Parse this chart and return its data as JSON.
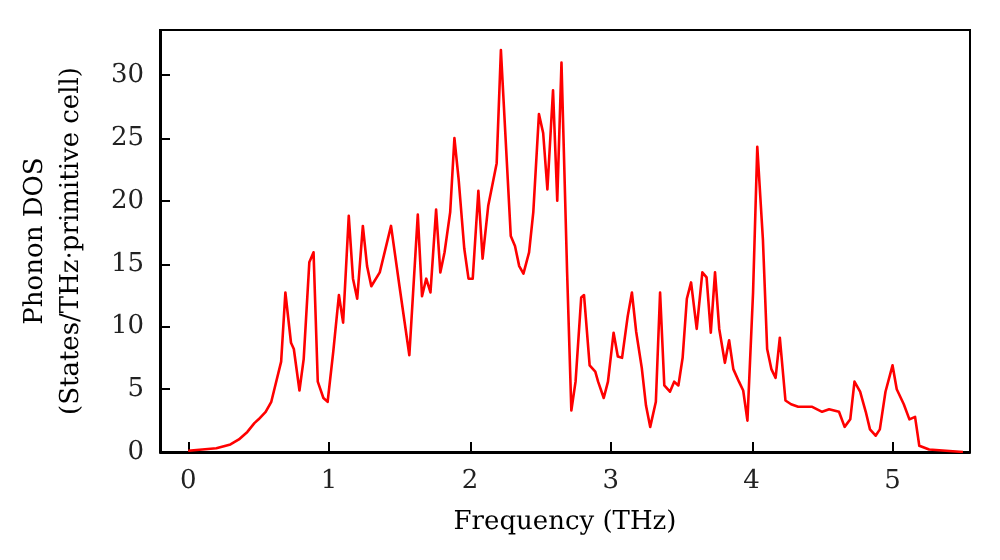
{
  "chart_data": {
    "type": "line",
    "xlabel": "Frequency (THz)",
    "ylabel": "Phonon DOS\n(States/THz·primitive cell)",
    "xlim": [
      -0.2,
      5.55
    ],
    "ylim": [
      0,
      33.6
    ],
    "xticks": [
      0,
      1,
      2,
      3,
      4,
      5
    ],
    "yticks": [
      0,
      5,
      10,
      15,
      20,
      25,
      30
    ],
    "marker": "none",
    "line_style": "solid",
    "series": [
      {
        "color": "#ff0000",
        "x": [
          0,
          0.1,
          0.2,
          0.3,
          0.36,
          0.42,
          0.47,
          0.5,
          0.55,
          0.59,
          0.66,
          0.69,
          0.73,
          0.75,
          0.79,
          0.82,
          0.86,
          0.89,
          0.92,
          0.96,
          0.99,
          1.03,
          1.07,
          1.1,
          1.14,
          1.17,
          1.2,
          1.24,
          1.27,
          1.3,
          1.36,
          1.44,
          1.5,
          1.57,
          1.63,
          1.66,
          1.69,
          1.72,
          1.76,
          1.79,
          1.82,
          1.86,
          1.89,
          1.92,
          1.96,
          1.99,
          2.02,
          2.06,
          2.09,
          2.13,
          2.19,
          2.22,
          2.29,
          2.32,
          2.35,
          2.38,
          2.42,
          2.45,
          2.49,
          2.52,
          2.55,
          2.59,
          2.62,
          2.65,
          2.69,
          2.72,
          2.75,
          2.79,
          2.81,
          2.85,
          2.89,
          2.91,
          2.95,
          2.98,
          3.02,
          3.05,
          3.08,
          3.12,
          3.15,
          3.18,
          3.22,
          3.25,
          3.28,
          3.32,
          3.35,
          3.38,
          3.42,
          3.45,
          3.48,
          3.51,
          3.54,
          3.57,
          3.61,
          3.65,
          3.68,
          3.71,
          3.74,
          3.77,
          3.81,
          3.84,
          3.87,
          3.91,
          3.94,
          3.97,
          4.01,
          4.04,
          4.08,
          4.11,
          4.14,
          4.17,
          4.2,
          4.24,
          4.28,
          4.33,
          4.43,
          4.5,
          4.55,
          4.62,
          4.66,
          4.7,
          4.73,
          4.77,
          4.81,
          4.84,
          4.88,
          4.91,
          4.95,
          5.0,
          5.03,
          5.08,
          5.12,
          5.16,
          5.19,
          5.26,
          5.5
        ],
        "values": [
          0.1,
          0.2,
          0.3,
          0.6,
          1.0,
          1.6,
          2.3,
          2.6,
          3.2,
          4.0,
          7.2,
          12.7,
          8.7,
          8.2,
          4.9,
          7.4,
          15.1,
          15.9,
          5.6,
          4.3,
          4.0,
          8.0,
          12.5,
          10.3,
          18.8,
          13.8,
          12.2,
          18.0,
          14.8,
          13.2,
          14.3,
          18.0,
          13.2,
          7.7,
          18.9,
          12.4,
          13.8,
          12.7,
          19.3,
          14.3,
          15.9,
          19.1,
          25.0,
          21.7,
          16.2,
          13.8,
          13.8,
          20.8,
          15.4,
          19.6,
          23.0,
          32.0,
          17.2,
          16.4,
          14.8,
          14.2,
          15.9,
          19.1,
          26.9,
          25.4,
          20.9,
          28.8,
          20.0,
          31.0,
          14.3,
          3.3,
          5.6,
          12.3,
          12.5,
          6.9,
          6.4,
          5.6,
          4.3,
          5.6,
          9.5,
          7.6,
          7.5,
          10.8,
          12.7,
          9.6,
          6.7,
          3.7,
          2.0,
          4.0,
          12.7,
          5.3,
          4.8,
          5.6,
          5.3,
          7.5,
          12.2,
          13.5,
          9.8,
          14.3,
          13.9,
          9.5,
          14.3,
          9.8,
          7.1,
          8.9,
          6.6,
          5.6,
          4.9,
          2.5,
          12.7,
          24.3,
          16.9,
          8.2,
          6.6,
          5.9,
          9.1,
          4.1,
          3.8,
          3.6,
          3.6,
          3.2,
          3.4,
          3.2,
          2.0,
          2.6,
          5.6,
          4.8,
          3.2,
          1.8,
          1.3,
          1.8,
          4.8,
          6.9,
          5.0,
          3.8,
          2.6,
          2.8,
          0.5,
          0.2,
          0.0
        ]
      }
    ]
  }
}
